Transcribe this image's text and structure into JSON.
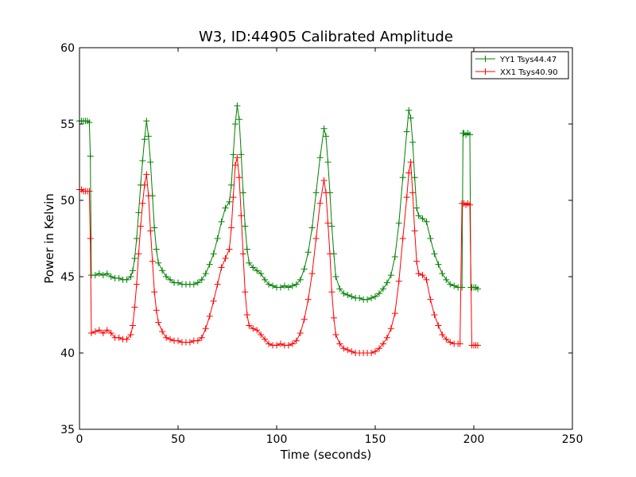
{
  "chart_data": {
    "type": "line",
    "title": "W3, ID:44905 Calibrated Amplitude",
    "xlabel": "Time (seconds)",
    "ylabel": "Power in Kelvin",
    "xlim": [
      0,
      250
    ],
    "ylim": [
      35,
      60
    ],
    "xticks": [
      0,
      50,
      100,
      150,
      200,
      250
    ],
    "yticks": [
      35,
      40,
      45,
      50,
      55,
      60
    ],
    "grid": false,
    "legend": "top-right",
    "marker": "+",
    "series": [
      {
        "name": "YY1 Tsys44.47",
        "color": "#008000",
        "points": [
          [
            0,
            55.2
          ],
          [
            1,
            55.2
          ],
          [
            2,
            55.2
          ],
          [
            3,
            55.2
          ],
          [
            4,
            55.2
          ],
          [
            5,
            55.1
          ],
          [
            5.5,
            52.9
          ],
          [
            6,
            45.1
          ],
          [
            8,
            45.1
          ],
          [
            10,
            45.2
          ],
          [
            12,
            45.1
          ],
          [
            14,
            45.2
          ],
          [
            16,
            45.0
          ],
          [
            18,
            44.9
          ],
          [
            20,
            44.9
          ],
          [
            22,
            44.8
          ],
          [
            24,
            44.8
          ],
          [
            26,
            45.0
          ],
          [
            27,
            45.4
          ],
          [
            28,
            46.2
          ],
          [
            29,
            47.5
          ],
          [
            30,
            49.2
          ],
          [
            31,
            51.0
          ],
          [
            32,
            52.6
          ],
          [
            33,
            54.0
          ],
          [
            34,
            55.2
          ],
          [
            35,
            54.2
          ],
          [
            36,
            52.5
          ],
          [
            37,
            50.3
          ],
          [
            38,
            48.2
          ],
          [
            39,
            46.8
          ],
          [
            40,
            45.9
          ],
          [
            42,
            45.4
          ],
          [
            44,
            45.0
          ],
          [
            46,
            44.8
          ],
          [
            48,
            44.6
          ],
          [
            50,
            44.6
          ],
          [
            52,
            44.5
          ],
          [
            54,
            44.5
          ],
          [
            56,
            44.5
          ],
          [
            58,
            44.5
          ],
          [
            60,
            44.6
          ],
          [
            62,
            44.8
          ],
          [
            64,
            45.2
          ],
          [
            66,
            45.8
          ],
          [
            68,
            46.5
          ],
          [
            70,
            47.5
          ],
          [
            72,
            48.6
          ],
          [
            74,
            49.5
          ],
          [
            76,
            49.9
          ],
          [
            77,
            51.0
          ],
          [
            78,
            53.0
          ],
          [
            79,
            55.0
          ],
          [
            80,
            56.2
          ],
          [
            81,
            55.3
          ],
          [
            82,
            53.0
          ],
          [
            83,
            50.5
          ],
          [
            84,
            48.3
          ],
          [
            85,
            46.8
          ],
          [
            86,
            45.9
          ],
          [
            88,
            45.6
          ],
          [
            90,
            45.4
          ],
          [
            92,
            45.2
          ],
          [
            94,
            44.8
          ],
          [
            96,
            44.5
          ],
          [
            98,
            44.4
          ],
          [
            100,
            44.3
          ],
          [
            102,
            44.3
          ],
          [
            104,
            44.4
          ],
          [
            106,
            44.3
          ],
          [
            108,
            44.4
          ],
          [
            110,
            44.5
          ],
          [
            112,
            44.8
          ],
          [
            114,
            45.5
          ],
          [
            116,
            46.6
          ],
          [
            118,
            48.2
          ],
          [
            120,
            50.5
          ],
          [
            122,
            52.8
          ],
          [
            124,
            54.7
          ],
          [
            125,
            54.2
          ],
          [
            126,
            52.5
          ],
          [
            127,
            50.5
          ],
          [
            128,
            48.3
          ],
          [
            129,
            46.5
          ],
          [
            130,
            45.0
          ],
          [
            132,
            44.2
          ],
          [
            134,
            43.9
          ],
          [
            136,
            43.8
          ],
          [
            138,
            43.7
          ],
          [
            140,
            43.6
          ],
          [
            142,
            43.6
          ],
          [
            144,
            43.5
          ],
          [
            146,
            43.5
          ],
          [
            148,
            43.6
          ],
          [
            150,
            43.7
          ],
          [
            152,
            43.9
          ],
          [
            154,
            44.2
          ],
          [
            156,
            44.6
          ],
          [
            158,
            45.1
          ],
          [
            160,
            46.3
          ],
          [
            162,
            48.5
          ],
          [
            164,
            51.5
          ],
          [
            166,
            54.5
          ],
          [
            167,
            55.9
          ],
          [
            168,
            55.4
          ],
          [
            169,
            53.8
          ],
          [
            170,
            51.5
          ],
          [
            171,
            49.5
          ],
          [
            172,
            49.0
          ],
          [
            174,
            48.8
          ],
          [
            176,
            48.6
          ],
          [
            178,
            47.5
          ],
          [
            180,
            46.5
          ],
          [
            182,
            45.8
          ],
          [
            184,
            45.2
          ],
          [
            186,
            44.8
          ],
          [
            188,
            44.5
          ],
          [
            190,
            44.4
          ],
          [
            192,
            44.3
          ],
          [
            194,
            44.3
          ],
          [
            194.5,
            54.4
          ],
          [
            195,
            54.4
          ],
          [
            196,
            54.3
          ],
          [
            197,
            54.4
          ],
          [
            198,
            54.3
          ],
          [
            198.5,
            44.3
          ],
          [
            199,
            44.3
          ],
          [
            200,
            44.3
          ],
          [
            201,
            44.3
          ],
          [
            202,
            44.2
          ]
        ]
      },
      {
        "name": "XX1 Tsys40.90",
        "color": "#ff0000",
        "points": [
          [
            0,
            50.7
          ],
          [
            1,
            50.7
          ],
          [
            2,
            50.6
          ],
          [
            3,
            50.6
          ],
          [
            4,
            50.6
          ],
          [
            5,
            50.6
          ],
          [
            5.5,
            47.5
          ],
          [
            6,
            41.3
          ],
          [
            8,
            41.4
          ],
          [
            10,
            41.5
          ],
          [
            12,
            41.3
          ],
          [
            14,
            41.5
          ],
          [
            16,
            41.3
          ],
          [
            18,
            41.0
          ],
          [
            20,
            41.0
          ],
          [
            22,
            40.9
          ],
          [
            24,
            40.9
          ],
          [
            26,
            41.2
          ],
          [
            27,
            41.8
          ],
          [
            28,
            43.0
          ],
          [
            29,
            44.5
          ],
          [
            30,
            46.5
          ],
          [
            31,
            48.3
          ],
          [
            32,
            49.8
          ],
          [
            33,
            51.0
          ],
          [
            34,
            51.7
          ],
          [
            35,
            50.3
          ],
          [
            36,
            48.0
          ],
          [
            37,
            46.0
          ],
          [
            38,
            44.0
          ],
          [
            39,
            42.8
          ],
          [
            40,
            42.0
          ],
          [
            42,
            41.4
          ],
          [
            44,
            41.0
          ],
          [
            46,
            40.9
          ],
          [
            48,
            40.8
          ],
          [
            50,
            40.8
          ],
          [
            52,
            40.7
          ],
          [
            54,
            40.7
          ],
          [
            56,
            40.7
          ],
          [
            58,
            40.8
          ],
          [
            60,
            40.8
          ],
          [
            62,
            41.0
          ],
          [
            64,
            41.6
          ],
          [
            66,
            42.4
          ],
          [
            68,
            43.4
          ],
          [
            70,
            44.5
          ],
          [
            72,
            45.6
          ],
          [
            74,
            46.2
          ],
          [
            76,
            46.8
          ],
          [
            77,
            48.2
          ],
          [
            78,
            50.2
          ],
          [
            79,
            52.3
          ],
          [
            80,
            52.8
          ],
          [
            81,
            51.5
          ],
          [
            82,
            49.0
          ],
          [
            83,
            46.5
          ],
          [
            84,
            44.0
          ],
          [
            85,
            42.5
          ],
          [
            86,
            41.8
          ],
          [
            88,
            41.6
          ],
          [
            90,
            41.5
          ],
          [
            92,
            41.2
          ],
          [
            94,
            40.9
          ],
          [
            96,
            40.6
          ],
          [
            98,
            40.5
          ],
          [
            100,
            40.5
          ],
          [
            102,
            40.6
          ],
          [
            104,
            40.5
          ],
          [
            106,
            40.5
          ],
          [
            108,
            40.6
          ],
          [
            110,
            40.8
          ],
          [
            112,
            41.3
          ],
          [
            114,
            42.2
          ],
          [
            116,
            43.5
          ],
          [
            118,
            45.2
          ],
          [
            120,
            47.5
          ],
          [
            122,
            49.8
          ],
          [
            124,
            51.3
          ],
          [
            125,
            50.5
          ],
          [
            126,
            48.5
          ],
          [
            127,
            46.5
          ],
          [
            128,
            44.0
          ],
          [
            129,
            42.3
          ],
          [
            130,
            41.2
          ],
          [
            132,
            40.6
          ],
          [
            134,
            40.3
          ],
          [
            136,
            40.2
          ],
          [
            138,
            40.1
          ],
          [
            140,
            40.0
          ],
          [
            142,
            40.0
          ],
          [
            144,
            40.0
          ],
          [
            146,
            40.0
          ],
          [
            148,
            40.0
          ],
          [
            150,
            40.1
          ],
          [
            152,
            40.3
          ],
          [
            154,
            40.6
          ],
          [
            156,
            41.0
          ],
          [
            158,
            41.6
          ],
          [
            160,
            42.6
          ],
          [
            162,
            44.7
          ],
          [
            164,
            47.5
          ],
          [
            166,
            50.2
          ],
          [
            167,
            51.8
          ],
          [
            168,
            52.5
          ],
          [
            169,
            50.5
          ],
          [
            170,
            48.0
          ],
          [
            171,
            46.0
          ],
          [
            172,
            45.2
          ],
          [
            174,
            45.1
          ],
          [
            176,
            44.8
          ],
          [
            178,
            43.5
          ],
          [
            180,
            42.5
          ],
          [
            182,
            41.8
          ],
          [
            184,
            41.2
          ],
          [
            186,
            40.9
          ],
          [
            188,
            40.7
          ],
          [
            190,
            40.6
          ],
          [
            192,
            40.6
          ],
          [
            193,
            40.6
          ],
          [
            194,
            49.8
          ],
          [
            195,
            49.8
          ],
          [
            196,
            49.7
          ],
          [
            197,
            49.8
          ],
          [
            198,
            49.7
          ],
          [
            199,
            40.5
          ],
          [
            200,
            40.5
          ],
          [
            201,
            40.5
          ],
          [
            202,
            40.5
          ]
        ]
      }
    ]
  }
}
